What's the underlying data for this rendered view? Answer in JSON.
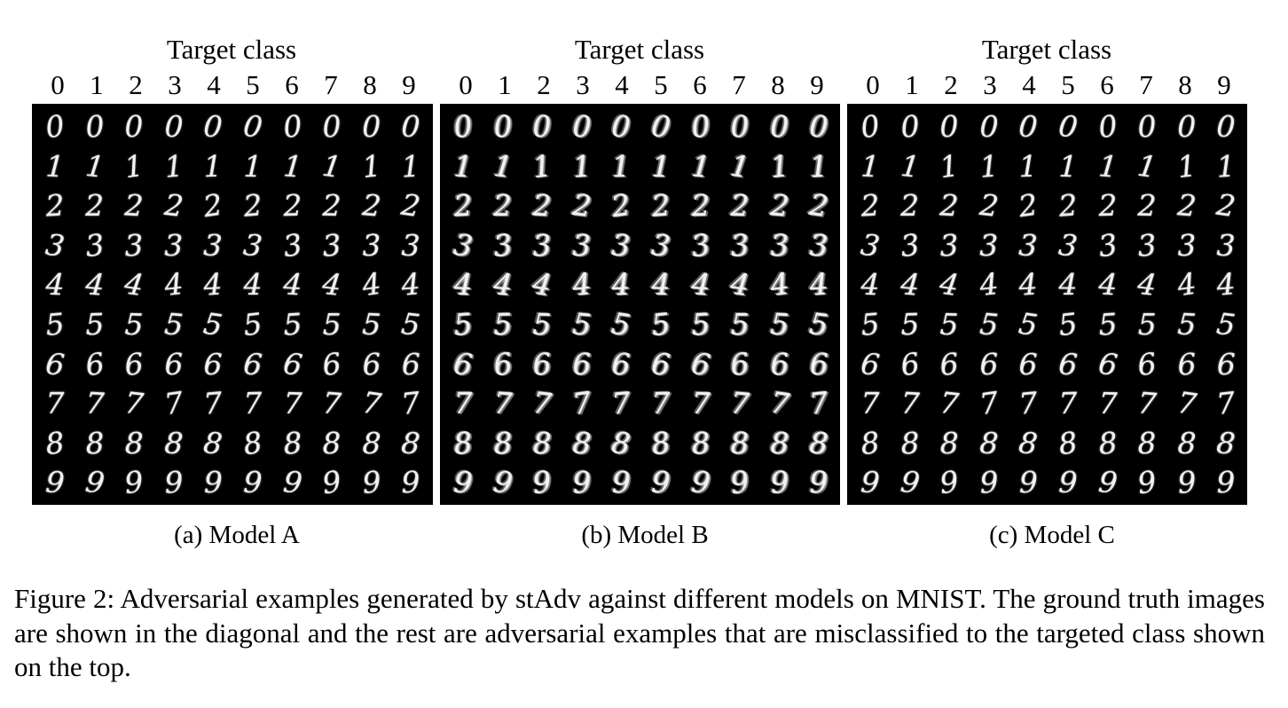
{
  "figure": {
    "panels": [
      {
        "id": "a",
        "top_label": "Target class",
        "classes": [
          "0",
          "1",
          "2",
          "3",
          "4",
          "5",
          "6",
          "7",
          "8",
          "9"
        ],
        "rows": [
          "0",
          "1",
          "2",
          "3",
          "4",
          "5",
          "6",
          "7",
          "8",
          "9"
        ],
        "subcaption": "(a) Model A"
      },
      {
        "id": "b",
        "top_label": "Target class",
        "classes": [
          "0",
          "1",
          "2",
          "3",
          "4",
          "5",
          "6",
          "7",
          "8",
          "9"
        ],
        "rows": [
          "0",
          "1",
          "2",
          "3",
          "4",
          "5",
          "6",
          "7",
          "8",
          "9"
        ],
        "subcaption": "(b) Model B",
        "noisy": true
      },
      {
        "id": "c",
        "top_label": "Target class",
        "classes": [
          "0",
          "1",
          "2",
          "3",
          "4",
          "5",
          "6",
          "7",
          "8",
          "9"
        ],
        "rows": [
          "0",
          "1",
          "2",
          "3",
          "4",
          "5",
          "6",
          "7",
          "8",
          "9"
        ],
        "subcaption": "(c) Model C"
      }
    ],
    "caption": "Figure 2: Adversarial examples generated by stAdv against different models on MNIST. The ground truth images are shown in the diagonal and the rest are adversarial examples that are misclassified to the targeted class shown on the top."
  }
}
